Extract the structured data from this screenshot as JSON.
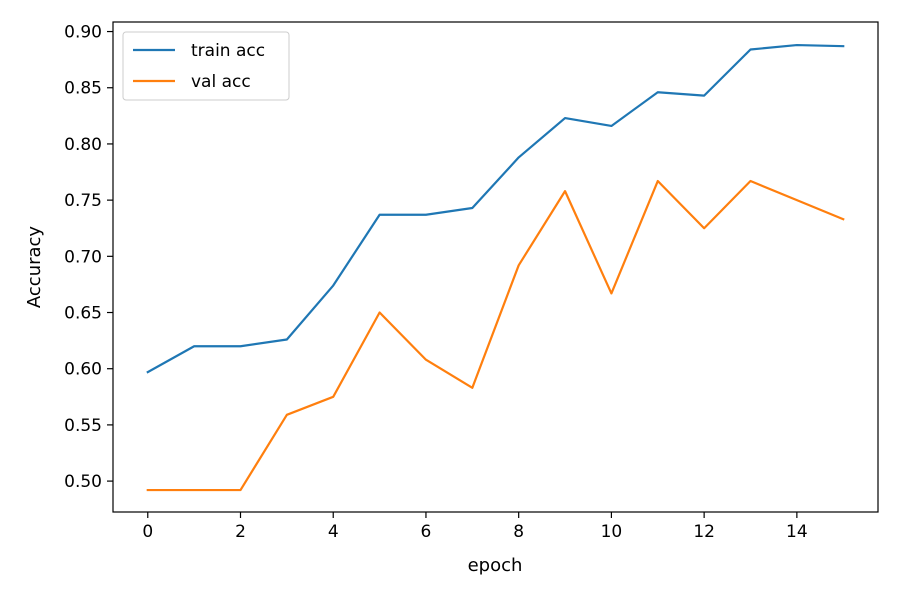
{
  "chart_data": {
    "type": "line",
    "title": "",
    "xlabel": "epoch",
    "ylabel": "Accuracy",
    "xlim": [
      -0.75,
      15.75
    ],
    "ylim": [
      0.4725,
      0.9085
    ],
    "xticks": [
      0,
      2,
      4,
      6,
      8,
      10,
      12,
      14
    ],
    "xtick_labels": [
      "0",
      "2",
      "4",
      "6",
      "8",
      "10",
      "12",
      "14"
    ],
    "yticks": [
      0.5,
      0.55,
      0.6,
      0.65,
      0.7,
      0.75,
      0.8,
      0.85,
      0.9
    ],
    "ytick_labels": [
      "0.50",
      "0.55",
      "0.60",
      "0.65",
      "0.70",
      "0.75",
      "0.80",
      "0.85",
      "0.90"
    ],
    "grid": false,
    "legend_position": "top-left",
    "x": [
      0,
      1,
      2,
      3,
      4,
      5,
      6,
      7,
      8,
      9,
      10,
      11,
      12,
      13,
      14,
      15
    ],
    "series": [
      {
        "name": "train acc",
        "color": "#1f77b4",
        "values": [
          0.597,
          0.62,
          0.62,
          0.626,
          0.674,
          0.737,
          0.737,
          0.743,
          0.788,
          0.823,
          0.816,
          0.846,
          0.843,
          0.884,
          0.888,
          0.887
        ]
      },
      {
        "name": "val acc",
        "color": "#ff7f0e",
        "values": [
          0.492,
          0.492,
          0.492,
          0.559,
          0.575,
          0.65,
          0.608,
          0.583,
          0.692,
          0.758,
          0.667,
          0.767,
          0.725,
          0.767,
          0.75,
          0.733
        ]
      }
    ]
  }
}
